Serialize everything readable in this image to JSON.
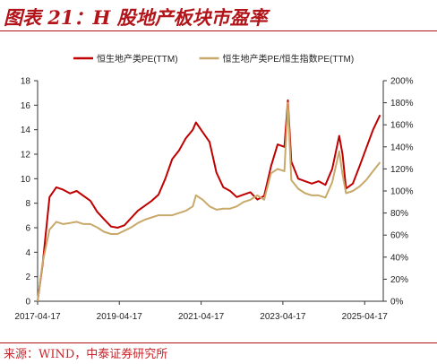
{
  "header": {
    "title": "图表 21：H 股地产板块市盈率",
    "accent_color": "#b3141a"
  },
  "footer": {
    "source": "来源：WIND，中泰证券研究所"
  },
  "chart_data": {
    "type": "line",
    "x_ticks": [
      "2017-04-17",
      "2019-04-17",
      "2021-04-17",
      "2023-04-17",
      "2025-04-17"
    ],
    "x_range": [
      "2017-04-17",
      "2025-09-30"
    ],
    "y_left": {
      "ticks": [
        "0",
        "2",
        "4",
        "6",
        "8",
        "10",
        "12",
        "14",
        "16",
        "18"
      ],
      "ylim": [
        0,
        18
      ]
    },
    "y_right": {
      "ticks": [
        "0%",
        "20%",
        "40%",
        "60%",
        "80%",
        "100%",
        "120%",
        "140%",
        "160%",
        "180%",
        "200%"
      ],
      "ylim": [
        0,
        200
      ]
    },
    "grid": false,
    "legend_position": "top-center",
    "series": [
      {
        "name": "恒生地产类PE(TTM)",
        "axis": "left",
        "color": "#c00000",
        "points": [
          [
            "2017-04-17",
            0
          ],
          [
            "2017-06-01",
            3.0
          ],
          [
            "2017-08-01",
            8.5
          ],
          [
            "2017-10-01",
            9.3
          ],
          [
            "2017-12-01",
            9.1
          ],
          [
            "2018-02-01",
            8.8
          ],
          [
            "2018-04-01",
            9.0
          ],
          [
            "2018-06-01",
            8.6
          ],
          [
            "2018-08-01",
            8.2
          ],
          [
            "2018-10-01",
            7.3
          ],
          [
            "2018-12-01",
            6.7
          ],
          [
            "2019-02-01",
            6.1
          ],
          [
            "2019-04-01",
            6.0
          ],
          [
            "2019-06-01",
            6.2
          ],
          [
            "2019-08-01",
            6.8
          ],
          [
            "2019-10-01",
            7.4
          ],
          [
            "2019-12-01",
            7.8
          ],
          [
            "2020-02-01",
            8.2
          ],
          [
            "2020-04-01",
            8.7
          ],
          [
            "2020-06-01",
            10.0
          ],
          [
            "2020-08-01",
            11.6
          ],
          [
            "2020-10-01",
            12.3
          ],
          [
            "2020-12-01",
            13.3
          ],
          [
            "2021-02-01",
            14.0
          ],
          [
            "2021-03-01",
            14.6
          ],
          [
            "2021-05-01",
            13.8
          ],
          [
            "2021-07-01",
            13.0
          ],
          [
            "2021-09-01",
            10.5
          ],
          [
            "2021-11-01",
            9.3
          ],
          [
            "2022-01-01",
            9.0
          ],
          [
            "2022-03-01",
            8.5
          ],
          [
            "2022-05-01",
            8.7
          ],
          [
            "2022-07-01",
            8.9
          ],
          [
            "2022-09-01",
            8.3
          ],
          [
            "2022-11-01",
            8.6
          ],
          [
            "2023-01-01",
            11.0
          ],
          [
            "2023-03-01",
            12.8
          ],
          [
            "2023-05-01",
            12.6
          ],
          [
            "2023-06-01",
            16.4
          ],
          [
            "2023-07-01",
            11.4
          ],
          [
            "2023-09-01",
            10.0
          ],
          [
            "2023-11-01",
            9.8
          ],
          [
            "2024-01-01",
            9.6
          ],
          [
            "2024-03-01",
            9.8
          ],
          [
            "2024-05-01",
            9.5
          ],
          [
            "2024-07-01",
            10.8
          ],
          [
            "2024-09-01",
            13.5
          ],
          [
            "2024-10-01",
            12.0
          ],
          [
            "2024-11-01",
            9.2
          ],
          [
            "2025-01-01",
            9.6
          ],
          [
            "2025-03-01",
            11.0
          ],
          [
            "2025-05-01",
            12.5
          ],
          [
            "2025-07-01",
            14.0
          ],
          [
            "2025-09-01",
            15.2
          ]
        ]
      },
      {
        "name": "恒生地产类PE/恒生指数PE(TTM)",
        "axis": "right",
        "color": "#c8a96a",
        "points": [
          [
            "2017-04-17",
            0
          ],
          [
            "2017-06-01",
            35
          ],
          [
            "2017-08-01",
            65
          ],
          [
            "2017-10-01",
            72
          ],
          [
            "2017-12-01",
            70
          ],
          [
            "2018-02-01",
            71
          ],
          [
            "2018-04-01",
            72
          ],
          [
            "2018-06-01",
            70
          ],
          [
            "2018-08-01",
            70
          ],
          [
            "2018-10-01",
            67
          ],
          [
            "2018-12-01",
            63
          ],
          [
            "2019-02-01",
            61
          ],
          [
            "2019-04-01",
            61
          ],
          [
            "2019-06-01",
            64
          ],
          [
            "2019-08-01",
            67
          ],
          [
            "2019-10-01",
            71
          ],
          [
            "2019-12-01",
            74
          ],
          [
            "2020-02-01",
            76
          ],
          [
            "2020-04-01",
            78
          ],
          [
            "2020-06-01",
            78
          ],
          [
            "2020-08-01",
            78
          ],
          [
            "2020-10-01",
            80
          ],
          [
            "2020-12-01",
            82
          ],
          [
            "2021-02-01",
            86
          ],
          [
            "2021-03-01",
            96
          ],
          [
            "2021-05-01",
            92
          ],
          [
            "2021-07-01",
            86
          ],
          [
            "2021-09-01",
            83
          ],
          [
            "2021-11-01",
            84
          ],
          [
            "2022-01-01",
            84
          ],
          [
            "2022-03-01",
            86
          ],
          [
            "2022-05-01",
            90
          ],
          [
            "2022-07-01",
            92
          ],
          [
            "2022-09-01",
            96
          ],
          [
            "2022-11-01",
            92
          ],
          [
            "2023-01-01",
            116
          ],
          [
            "2023-03-01",
            120
          ],
          [
            "2023-05-01",
            118
          ],
          [
            "2023-06-01",
            180
          ],
          [
            "2023-07-01",
            110
          ],
          [
            "2023-09-01",
            102
          ],
          [
            "2023-11-01",
            98
          ],
          [
            "2024-01-01",
            96
          ],
          [
            "2024-03-01",
            96
          ],
          [
            "2024-05-01",
            94
          ],
          [
            "2024-07-01",
            108
          ],
          [
            "2024-09-01",
            136
          ],
          [
            "2024-10-01",
            115
          ],
          [
            "2024-11-01",
            98
          ],
          [
            "2025-01-01",
            100
          ],
          [
            "2025-03-01",
            104
          ],
          [
            "2025-05-01",
            110
          ],
          [
            "2025-07-01",
            118
          ],
          [
            "2025-09-01",
            126
          ]
        ]
      }
    ]
  }
}
